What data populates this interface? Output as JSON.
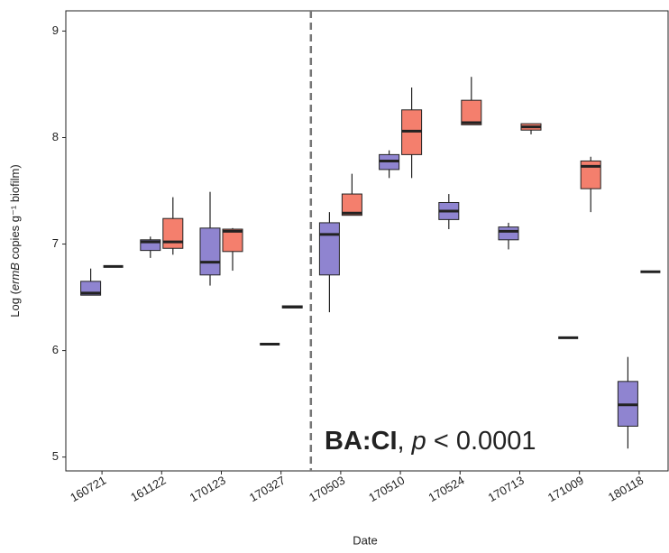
{
  "chart_data": {
    "type": "box",
    "categories": [
      "160721",
      "161122",
      "170123",
      "170327",
      "170503",
      "170510",
      "170524",
      "170713",
      "171009",
      "180118"
    ],
    "category_colors": [
      "#222222",
      "#222222",
      "#222222",
      "#222222",
      "#e8141e",
      "#e8141e",
      "#e8141e",
      "#e8141e",
      "#e8141e",
      "#e8141e"
    ],
    "divider_after_category": 4,
    "x_label": "Date",
    "y_label": [
      {
        "text": "Log ("
      },
      {
        "text": "ermB",
        "style": "italic"
      },
      {
        "text": " copies g⁻¹ biofilm)"
      }
    ],
    "annotation": [
      {
        "text": "BA:CI",
        "style": "bold"
      },
      {
        "text": ", "
      },
      {
        "text": "p",
        "style": "italic"
      },
      {
        "text": " < 0.0001"
      }
    ],
    "ylim": [
      4.87,
      9.19
    ],
    "yticks": [
      5,
      6,
      7,
      8,
      9
    ],
    "series": [
      {
        "color": "#8f84d0",
        "min": [
          6.52,
          6.87,
          6.61,
          6.06,
          6.36,
          7.62,
          7.14,
          6.95,
          6.12,
          5.08
        ],
        "q1": [
          6.52,
          6.94,
          6.71,
          6.06,
          6.71,
          7.7,
          7.23,
          7.04,
          6.12,
          5.29
        ],
        "median": [
          6.54,
          7.02,
          6.83,
          6.06,
          7.09,
          7.78,
          7.31,
          7.12,
          6.12,
          5.49
        ],
        "q3": [
          6.65,
          7.04,
          7.15,
          6.06,
          7.2,
          7.84,
          7.39,
          7.16,
          6.12,
          5.71
        ],
        "max": [
          6.77,
          7.07,
          7.49,
          6.06,
          7.3,
          7.88,
          7.47,
          7.2,
          6.12,
          5.94
        ]
      },
      {
        "color": "#f47f6d",
        "min": [
          6.79,
          6.9,
          6.75,
          6.4,
          7.27,
          7.62,
          8.12,
          8.03,
          7.3,
          6.74
        ],
        "q1": [
          6.79,
          6.96,
          6.93,
          6.4,
          7.27,
          7.84,
          8.12,
          8.07,
          7.52,
          6.74
        ],
        "median": [
          6.79,
          7.02,
          7.12,
          6.41,
          7.29,
          8.06,
          8.14,
          8.1,
          7.73,
          6.74
        ],
        "q3": [
          6.79,
          7.24,
          7.14,
          6.42,
          7.47,
          8.26,
          8.35,
          8.13,
          7.78,
          6.74
        ],
        "max": [
          6.79,
          7.44,
          7.15,
          6.42,
          7.66,
          8.47,
          8.57,
          8.13,
          7.82,
          6.74
        ]
      }
    ]
  }
}
